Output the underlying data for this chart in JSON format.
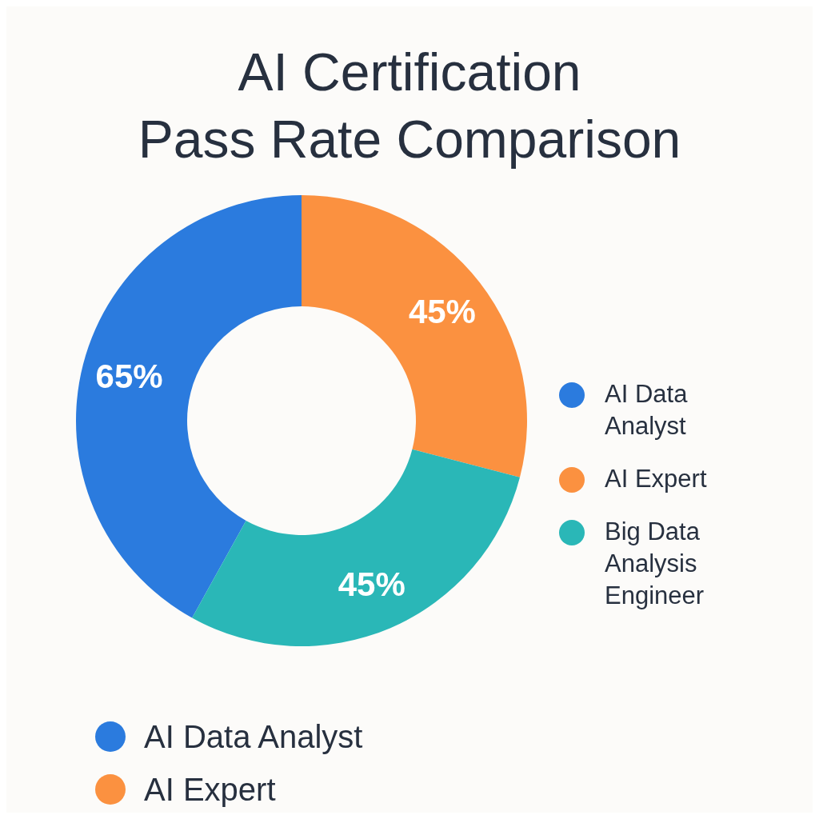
{
  "chart_data": {
    "type": "donut",
    "title": "AI Certification\nPass Rate Comparison",
    "categories": [
      "AI Data Analyst",
      "AI Expert",
      "Big Data Analysis Engineer"
    ],
    "values": [
      65,
      45,
      45
    ],
    "colors": [
      "#2b7bde",
      "#fb9140",
      "#2ab7b7"
    ],
    "value_labels": [
      "65%",
      "45%",
      "45%"
    ],
    "legend": "right"
  }
}
